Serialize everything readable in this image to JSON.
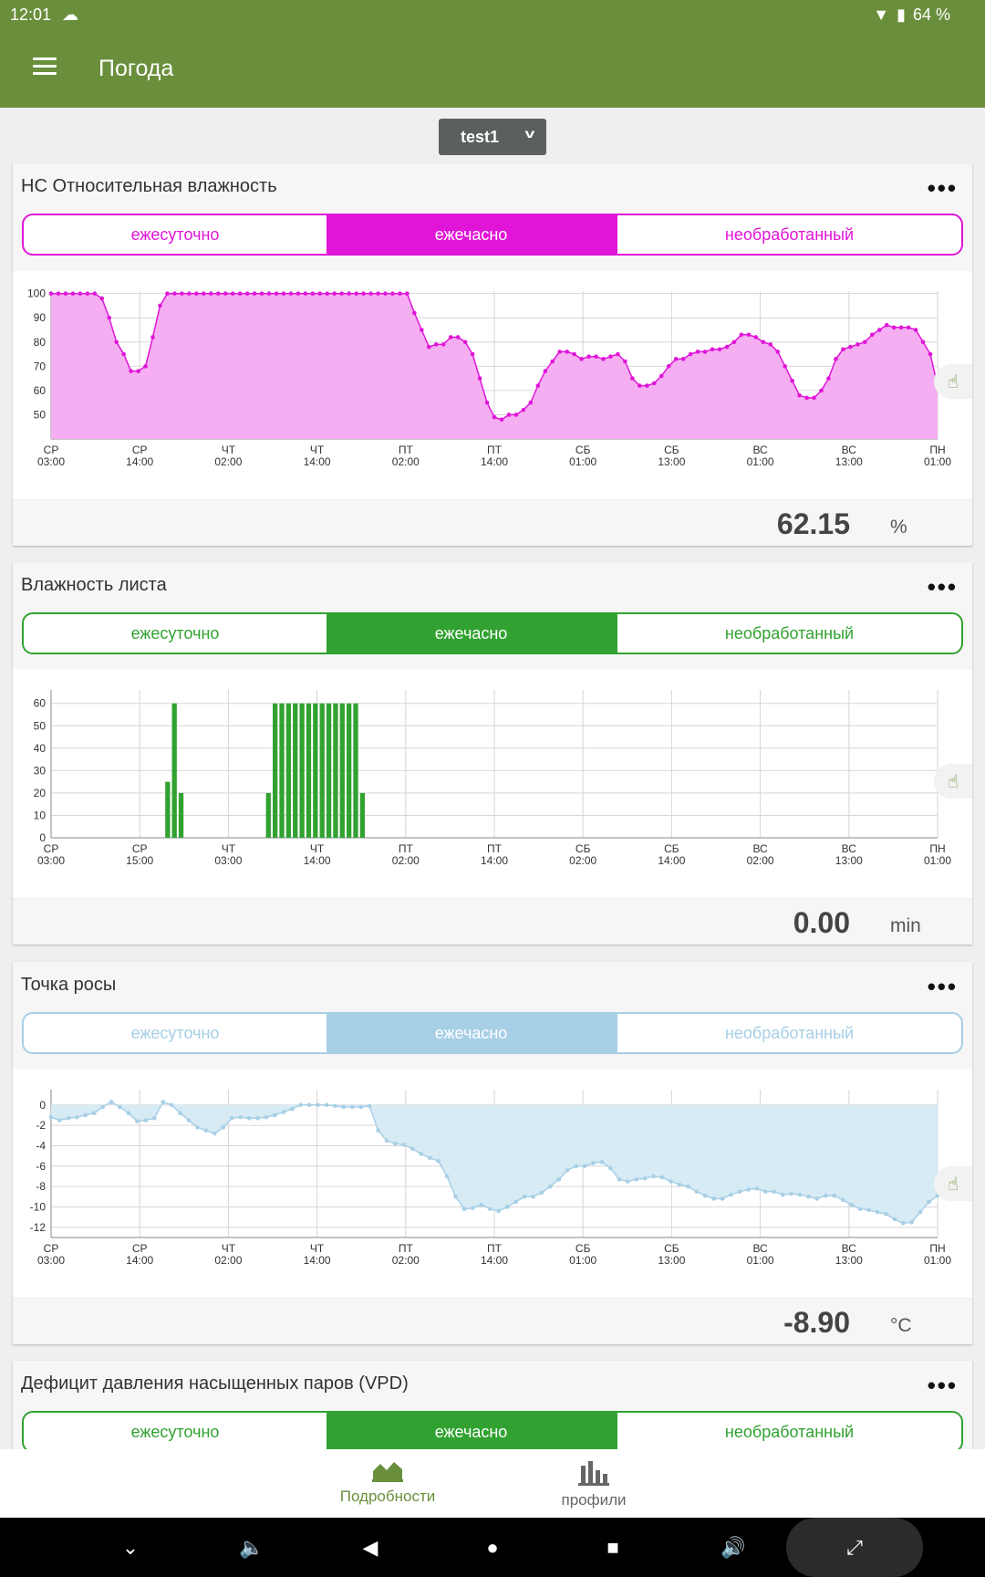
{
  "status": {
    "time": "12:01",
    "battery": "64 %"
  },
  "app": {
    "title": "Погода"
  },
  "profile": {
    "selected": "test1"
  },
  "charts": [
    {
      "title": "НС Относительная влажность",
      "accent": "#e015d8",
      "tabs": [
        "ежесуточно",
        "ежечасно",
        "необработанный"
      ],
      "active_tab": 1,
      "value": "62.15",
      "unit": "%",
      "chart_data": {
        "type": "area",
        "x_ticks": [
          [
            "СР",
            "03:00"
          ],
          [
            "СР",
            "14:00"
          ],
          [
            "ЧТ",
            "02:00"
          ],
          [
            "ЧТ",
            "14:00"
          ],
          [
            "ПТ",
            "02:00"
          ],
          [
            "ПТ",
            "14:00"
          ],
          [
            "СБ",
            "01:00"
          ],
          [
            "СБ",
            "13:00"
          ],
          [
            "ВС",
            "01:00"
          ],
          [
            "ВС",
            "13:00"
          ],
          [
            "ПН",
            "01:00"
          ]
        ],
        "y_ticks": [
          100,
          90,
          80,
          70,
          60,
          50
        ],
        "ylim": [
          40,
          101
        ],
        "values": [
          100,
          100,
          100,
          100,
          100,
          100,
          100,
          98,
          90,
          80,
          75,
          68,
          68,
          70,
          82,
          95,
          100,
          100,
          100,
          100,
          100,
          100,
          100,
          100,
          100,
          100,
          100,
          100,
          100,
          100,
          100,
          100,
          100,
          100,
          100,
          100,
          100,
          100,
          100,
          100,
          100,
          100,
          100,
          100,
          100,
          100,
          100,
          100,
          100,
          100,
          92,
          85,
          78,
          79,
          79,
          82,
          82,
          80,
          75,
          65,
          55,
          49,
          48,
          50,
          50,
          52,
          55,
          62,
          68,
          72,
          76,
          76,
          75,
          73,
          74,
          74,
          73,
          74,
          75,
          72,
          65,
          62,
          62,
          63,
          66,
          70,
          73,
          73,
          75,
          76,
          76,
          77,
          77,
          78,
          80,
          83,
          83,
          82,
          80,
          79,
          76,
          70,
          64,
          58,
          57,
          57,
          60,
          65,
          73,
          77,
          78,
          79,
          80,
          83,
          85,
          87,
          86,
          86,
          86,
          85,
          80,
          75,
          62
        ]
      }
    },
    {
      "title": "Влажность листа",
      "accent": "#31a231",
      "tabs": [
        "ежесуточно",
        "ежечасно",
        "необработанный"
      ],
      "active_tab": 1,
      "value": "0.00",
      "unit": "min",
      "chart_data": {
        "type": "bar",
        "x_ticks": [
          [
            "СР",
            "03:00"
          ],
          [
            "СР",
            "15:00"
          ],
          [
            "ЧТ",
            "03:00"
          ],
          [
            "ЧТ",
            "14:00"
          ],
          [
            "ПТ",
            "02:00"
          ],
          [
            "ПТ",
            "14:00"
          ],
          [
            "СБ",
            "02:00"
          ],
          [
            "СБ",
            "14:00"
          ],
          [
            "ВС",
            "02:00"
          ],
          [
            "ВС",
            "13:00"
          ],
          [
            "ПН",
            "01:00"
          ]
        ],
        "y_ticks": [
          60,
          50,
          40,
          30,
          20,
          10,
          0
        ],
        "ylim": [
          0,
          66
        ],
        "bars": [
          [
            17,
            25
          ],
          [
            18,
            60
          ],
          [
            19,
            20
          ],
          [
            32,
            20
          ],
          [
            33,
            60
          ],
          [
            34,
            60
          ],
          [
            35,
            60
          ],
          [
            36,
            60
          ],
          [
            37,
            60
          ],
          [
            38,
            60
          ],
          [
            39,
            60
          ],
          [
            40,
            60
          ],
          [
            41,
            60
          ],
          [
            42,
            60
          ],
          [
            43,
            60
          ],
          [
            44,
            60
          ],
          [
            45,
            60
          ],
          [
            46,
            20
          ]
        ],
        "num_hours": 132
      }
    },
    {
      "title": "Точка росы",
      "accent": "#a7cfe6",
      "tabs": [
        "ежесуточно",
        "ежечасно",
        "необработанный"
      ],
      "active_tab": 1,
      "value": "-8.90",
      "unit": "°C",
      "chart_data": {
        "type": "area",
        "x_ticks": [
          [
            "СР",
            "03:00"
          ],
          [
            "СР",
            "14:00"
          ],
          [
            "ЧТ",
            "02:00"
          ],
          [
            "ЧТ",
            "14:00"
          ],
          [
            "ПТ",
            "02:00"
          ],
          [
            "ПТ",
            "14:00"
          ],
          [
            "СБ",
            "01:00"
          ],
          [
            "СБ",
            "13:00"
          ],
          [
            "ВС",
            "01:00"
          ],
          [
            "ВС",
            "13:00"
          ],
          [
            "ПН",
            "01:00"
          ]
        ],
        "y_ticks": [
          0,
          -2,
          -4,
          -6,
          -8,
          -10,
          -12
        ],
        "ylim": [
          -13,
          1.5
        ],
        "values": [
          -1.2,
          -1.5,
          -1.3,
          -1.2,
          -1,
          -0.8,
          -0.2,
          0.3,
          -0.2,
          -0.8,
          -1.6,
          -1.5,
          -1.3,
          0.3,
          0,
          -0.8,
          -1.5,
          -2.2,
          -2.5,
          -2.8,
          -2.2,
          -1.3,
          -1.2,
          -1.3,
          -1.3,
          -1.2,
          -1,
          -0.7,
          -0.4,
          0,
          0,
          0,
          0,
          -0.1,
          -0.2,
          -0.2,
          -0.2,
          -0.1,
          -2.5,
          -3.5,
          -3.8,
          -3.9,
          -4.3,
          -4.8,
          -5.2,
          -5.5,
          -7,
          -9,
          -10.2,
          -10.1,
          -9.8,
          -10.2,
          -10.4,
          -10,
          -9.5,
          -9,
          -9,
          -8.6,
          -8,
          -7.3,
          -6.4,
          -6,
          -6,
          -5.7,
          -5.6,
          -6.2,
          -7.3,
          -7.5,
          -7.3,
          -7.2,
          -7,
          -7.1,
          -7.5,
          -7.8,
          -8,
          -8.5,
          -8.9,
          -9.2,
          -9.2,
          -8.8,
          -8.5,
          -8.3,
          -8.2,
          -8.5,
          -8.5,
          -8.8,
          -8.7,
          -8.8,
          -9,
          -9.2,
          -8.9,
          -8.9,
          -9.3,
          -9.8,
          -10.2,
          -10.3,
          -10.5,
          -10.7,
          -11.2,
          -11.6,
          -11.5,
          -10.5,
          -9.5,
          -8.9
        ]
      }
    },
    {
      "title": "Дефицит давления насыщенных паров (VPD)",
      "accent": "#31a231",
      "tabs": [
        "ежесуточно",
        "ежечасно",
        "необработанный"
      ],
      "active_tab": 1
    }
  ],
  "nav": {
    "details": "Подробности",
    "profiles": "профили"
  },
  "icons": {
    "menu": "menu-icon",
    "cloud": "cloud-upload-icon",
    "wifi": "wifi-icon",
    "battery": "battery-icon",
    "chevron": "chevron-down-icon",
    "more": "more-horiz-icon",
    "hand": "touch-hand-icon",
    "details": "area-chart-icon",
    "profiles": "bar-chart-icon"
  }
}
